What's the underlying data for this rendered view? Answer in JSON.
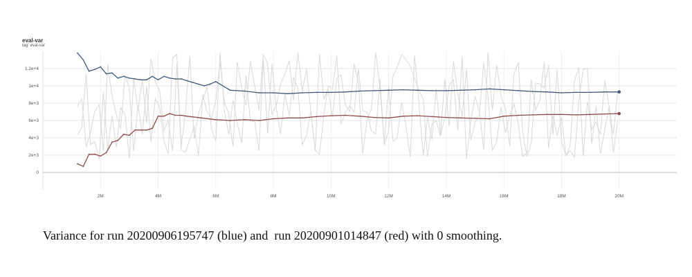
{
  "chart_data": {
    "type": "line",
    "title": "eval-var",
    "tag": "tag: eval-var",
    "x_ticks": [
      "2M",
      "4M",
      "6M",
      "8M",
      "10M",
      "12M",
      "14M",
      "16M",
      "18M",
      "20M"
    ],
    "x_tick_values": [
      2000000,
      4000000,
      6000000,
      8000000,
      10000000,
      12000000,
      14000000,
      16000000,
      18000000,
      20000000
    ],
    "y_ticks": [
      "0",
      "2e+3",
      "4e+3",
      "6e+3",
      "8e+3",
      "1e+4",
      "1.2e+4"
    ],
    "y_tick_values": [
      0,
      2000,
      4000,
      6000,
      8000,
      10000,
      12000
    ],
    "xlim": [
      0,
      22000000
    ],
    "ylim": [
      -2000,
      14000
    ],
    "grid": true,
    "series": [
      {
        "color": "#3e5878",
        "x": [
          1200000,
          1400000,
          1600000,
          1800000,
          2000000,
          2200000,
          2400000,
          2600000,
          2800000,
          3000000,
          3200000,
          3400000,
          3600000,
          3800000,
          4000000,
          4200000,
          4400000,
          4600000,
          4800000,
          5000000,
          5200000,
          5400000,
          5600000,
          5800000,
          6000000,
          6500000,
          7000000,
          7500000,
          8000000,
          8500000,
          9000000,
          9500000,
          10000000,
          10500000,
          11000000,
          11500000,
          12000000,
          12500000,
          13000000,
          13500000,
          14000000,
          14500000,
          15000000,
          15500000,
          16000000,
          16500000,
          17000000,
          17500000,
          18000000,
          18500000,
          19000000,
          19500000,
          20000000
        ],
        "y": [
          13800,
          13000,
          11700,
          11900,
          12200,
          11400,
          11500,
          10900,
          11100,
          10900,
          10800,
          10700,
          10700,
          11100,
          10700,
          11100,
          10900,
          10800,
          10800,
          10600,
          10400,
          10200,
          10000,
          10200,
          10500,
          9500,
          9400,
          9200,
          9200,
          9100,
          9200,
          9250,
          9250,
          9300,
          9400,
          9450,
          9500,
          9550,
          9500,
          9450,
          9450,
          9500,
          9550,
          9650,
          9550,
          9450,
          9350,
          9300,
          9200,
          9250,
          9250,
          9300,
          9300
        ]
      },
      {
        "color": "#8e4a4a",
        "x": [
          1200000,
          1400000,
          1600000,
          1800000,
          2000000,
          2200000,
          2400000,
          2600000,
          2800000,
          3000000,
          3200000,
          3400000,
          3600000,
          3800000,
          4000000,
          4200000,
          4400000,
          4600000,
          4800000,
          5000000,
          5500000,
          6000000,
          6500000,
          7000000,
          7500000,
          8000000,
          8500000,
          9000000,
          9500000,
          10000000,
          10500000,
          11000000,
          11500000,
          12000000,
          12500000,
          13000000,
          13500000,
          14000000,
          14500000,
          15000000,
          15500000,
          16000000,
          16500000,
          17000000,
          17500000,
          18000000,
          18500000,
          19000000,
          19500000,
          20000000
        ],
        "y": [
          1000,
          700,
          2100,
          2100,
          1900,
          2300,
          3500,
          3700,
          4400,
          4300,
          4900,
          4900,
          4900,
          5100,
          6500,
          6500,
          6800,
          6600,
          6600,
          6500,
          6300,
          6100,
          6000,
          6100,
          6000,
          6200,
          6300,
          6300,
          6450,
          6550,
          6600,
          6500,
          6350,
          6300,
          6500,
          6550,
          6450,
          6350,
          6300,
          6250,
          6200,
          6500,
          6600,
          6650,
          6700,
          6700,
          6650,
          6700,
          6750,
          6800
        ]
      }
    ]
  },
  "caption": "Variance for run 20200906195747 (blue) and  run 20200901014847 (red) with 0 smoothing."
}
